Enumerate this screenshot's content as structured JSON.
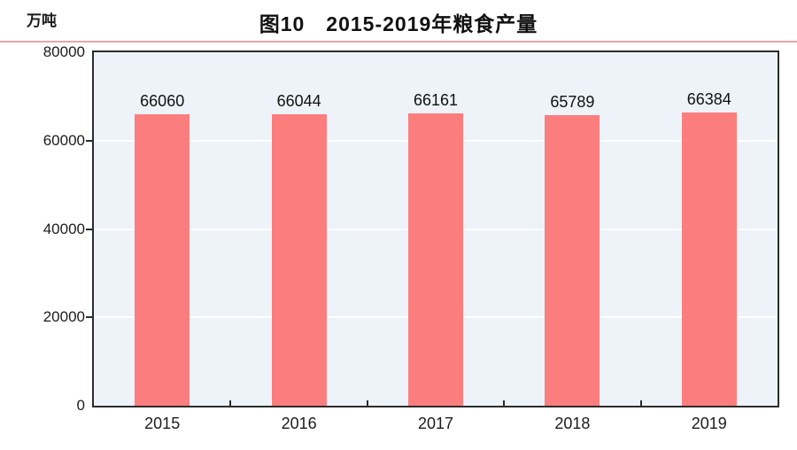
{
  "unit_label": "万吨",
  "title": "图10　2015-2019年粮食产量",
  "colors": {
    "bar": "#fb7d7d",
    "plot_background": "#edf3f8",
    "gridline": "#ffffff",
    "axis_border": "#2c2c2c",
    "title_underline": "#eda4a4",
    "text": "#1c1c1c"
  },
  "chart_data": {
    "type": "bar",
    "categories": [
      "2015",
      "2016",
      "2017",
      "2018",
      "2019"
    ],
    "values": [
      66060,
      66044,
      66161,
      65789,
      66384
    ],
    "title": "图10　2015-2019年粮食产量",
    "xlabel": "",
    "ylabel": "万吨",
    "ylim": [
      0,
      80000
    ],
    "yticks": [
      0,
      20000,
      40000,
      60000,
      80000
    ],
    "grid": true,
    "grid_color": "white",
    "data_labels": true,
    "legend": "none"
  }
}
